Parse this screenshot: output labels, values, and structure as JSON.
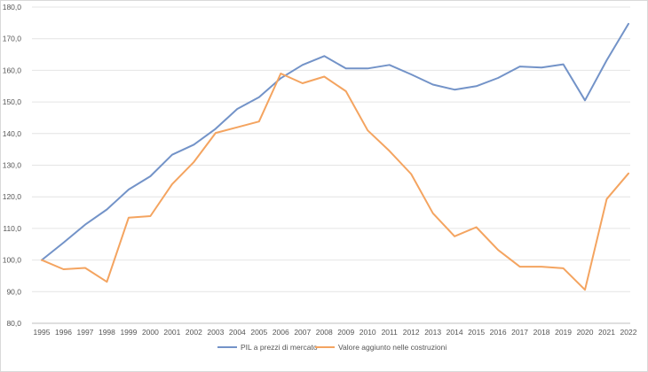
{
  "chart_data": {
    "type": "line",
    "title": "",
    "xlabel": "",
    "ylabel": "",
    "ylim": [
      80,
      180
    ],
    "y_ticks": [
      "80,0",
      "90,0",
      "100,0",
      "110,0",
      "120,0",
      "130,0",
      "140,0",
      "150,0",
      "160,0",
      "170,0",
      "180,0"
    ],
    "categories": [
      "1995",
      "1996",
      "1997",
      "1998",
      "1999",
      "2000",
      "2001",
      "2002",
      "2003",
      "2004",
      "2005",
      "2006",
      "2007",
      "2008",
      "2009",
      "2010",
      "2011",
      "2012",
      "2013",
      "2014",
      "2015",
      "2016",
      "2017",
      "2018",
      "2019",
      "2020",
      "2021",
      "2022"
    ],
    "grid": true,
    "legend_position": "bottom",
    "series": [
      {
        "name": "PIL a prezzi di mercato",
        "color": "#7393c8",
        "values": [
          100.0,
          105.5,
          111.2,
          116.0,
          122.3,
          126.5,
          133.3,
          136.5,
          141.5,
          147.8,
          151.5,
          157.5,
          161.7,
          164.5,
          160.6,
          160.6,
          161.7,
          158.7,
          155.5,
          153.9,
          155.0,
          157.6,
          161.2,
          160.9,
          161.9,
          150.5,
          163.2,
          174.7
        ]
      },
      {
        "name": "Valore aggiunto nelle costruzioni",
        "color": "#f4a460",
        "values": [
          100.0,
          97.1,
          97.5,
          93.1,
          113.4,
          113.9,
          124.0,
          131.0,
          140.2,
          142.0,
          143.8,
          159.0,
          155.9,
          158.0,
          153.4,
          141.0,
          134.5,
          127.2,
          114.8,
          107.5,
          110.4,
          103.2,
          97.9,
          97.9,
          97.4,
          90.6,
          119.3,
          127.4
        ]
      }
    ]
  }
}
